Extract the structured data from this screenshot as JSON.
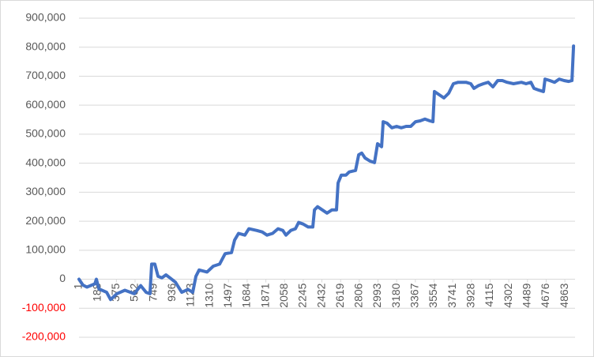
{
  "chart_data": {
    "type": "line",
    "series": [
      {
        "color": "#4472c4",
        "x": [
          1,
          40,
          80,
          160,
          175,
          200,
          278,
          317,
          380,
          460,
          554,
          618,
          673,
          712,
          728,
          760,
          792,
          831,
          871,
          910,
          965,
          1029,
          1092,
          1139,
          1171,
          1203,
          1282,
          1345,
          1408,
          1463,
          1527,
          1558,
          1598,
          1661,
          1701,
          1780,
          1835,
          1882,
          1938,
          1993,
          2041,
          2072,
          2120,
          2167,
          2199,
          2246,
          2294,
          2341,
          2357,
          2388,
          2436,
          2483,
          2531,
          2578,
          2594,
          2626,
          2673,
          2705,
          2768,
          2800,
          2831,
          2863,
          2910,
          2958,
          2989,
          3029,
          3045,
          3084,
          3132,
          3179,
          3226,
          3274,
          3321,
          3369,
          3416,
          3463,
          3511,
          3543,
          3558,
          3606,
          3653,
          3700,
          3748,
          3795,
          3874,
          3922,
          3953,
          4001,
          4048,
          4096,
          4143,
          4191,
          4238,
          4285,
          4349,
          4428,
          4475,
          4523,
          4554,
          4602,
          4649,
          4665,
          4713,
          4760,
          4807,
          4855,
          4902,
          4934,
          4950
        ],
        "values": [
          0,
          -20000,
          -27000,
          -16000,
          0,
          -33000,
          -45000,
          -70000,
          -50000,
          -38000,
          -50000,
          -22000,
          -45000,
          -50000,
          52000,
          52000,
          10000,
          5000,
          15000,
          5000,
          -10000,
          -45000,
          -35000,
          -45000,
          10000,
          32000,
          25000,
          45000,
          52000,
          88000,
          92000,
          135000,
          158000,
          152000,
          174000,
          168000,
          163000,
          152000,
          158000,
          174000,
          168000,
          152000,
          168000,
          174000,
          196000,
          190000,
          180000,
          180000,
          239000,
          250000,
          239000,
          228000,
          239000,
          239000,
          332000,
          359000,
          359000,
          370000,
          375000,
          429000,
          435000,
          418000,
          408000,
          402000,
          467000,
          457000,
          543000,
          538000,
          522000,
          527000,
          522000,
          527000,
          527000,
          543000,
          546000,
          552000,
          546000,
          543000,
          647000,
          636000,
          625000,
          641000,
          674000,
          679000,
          679000,
          674000,
          658000,
          668000,
          674000,
          679000,
          663000,
          685000,
          685000,
          679000,
          674000,
          679000,
          674000,
          679000,
          658000,
          652000,
          647000,
          690000,
          685000,
          679000,
          690000,
          685000,
          682000,
          685000,
          804000
        ]
      }
    ],
    "xlim": [
      1,
      4965
    ],
    "xticks": [
      1,
      188,
      375,
      562,
      749,
      936,
      1123,
      1310,
      1497,
      1684,
      1871,
      2058,
      2245,
      2432,
      2619,
      2806,
      2993,
      3180,
      3367,
      3554,
      3741,
      3928,
      4115,
      4302,
      4489,
      4676,
      4863
    ],
    "ylim": [
      -200000,
      900000
    ],
    "yticks": [
      {
        "value": -200000,
        "label": "-200,000"
      },
      {
        "value": -100000,
        "label": "-100,000"
      },
      0,
      {
        "value": 100000,
        "label": "100,000"
      },
      {
        "value": 200000,
        "label": "200,000"
      },
      {
        "value": 300000,
        "label": "300,000"
      },
      {
        "value": 400000,
        "label": "400,000"
      },
      {
        "value": 500000,
        "label": "500,000"
      },
      {
        "value": 600000,
        "label": "600,000"
      },
      {
        "value": 700000,
        "label": "700,000"
      },
      {
        "value": 800000,
        "label": "800,000"
      },
      {
        "value": 900000,
        "label": "900,000"
      }
    ],
    "grid": true,
    "negative_tick_color": "#ff0000"
  }
}
